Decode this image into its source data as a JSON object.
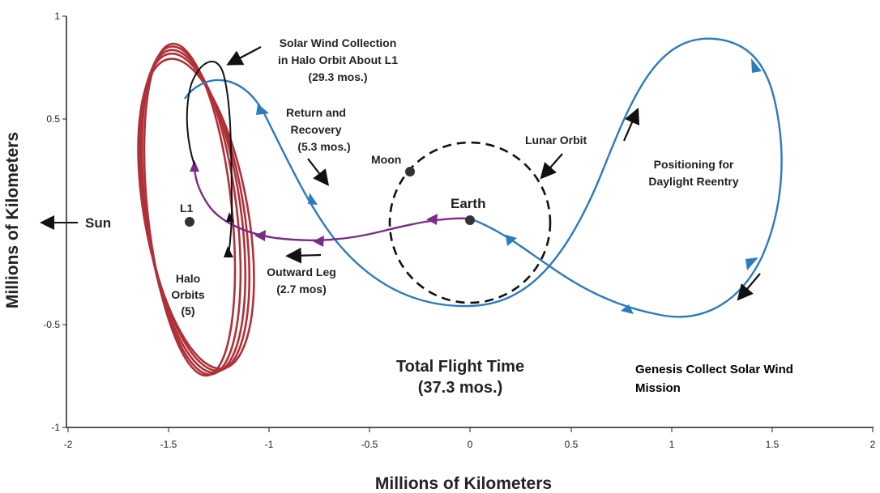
{
  "axes": {
    "x_label": "Millions of Kilometers",
    "y_label": "Millions of Kilometers",
    "x_ticks": [
      "-2",
      "-1.5",
      "-1",
      "-0.5",
      "0",
      "0.5",
      "1",
      "1.5",
      "2"
    ],
    "y_ticks": [
      "1",
      "0.5",
      "-0.5",
      "-1"
    ],
    "xlim": [
      -2,
      2
    ],
    "ylim": [
      -1,
      1
    ]
  },
  "labels": {
    "sun": "Sun",
    "l1": "L1",
    "earth": "Earth",
    "moon": "Moon",
    "lunar_orbit": "Lunar Orbit",
    "halo_orbits": [
      "Halo",
      "Orbits",
      "(5)"
    ],
    "solar_wind": [
      "Solar Wind Collection",
      "in Halo Orbit About L1",
      "(29.3 mos.)"
    ],
    "return": [
      "Return and",
      "Recovery",
      "(5.3 mos.)"
    ],
    "positioning": [
      "Positioning for",
      "Daylight Reentry"
    ],
    "outward": [
      "Outward Leg",
      "(2.7 mos)"
    ],
    "total": [
      "Total Flight Time",
      "(37.3 mos.)"
    ],
    "caption": [
      "Genesis Collect Solar Wind",
      "Mission"
    ]
  },
  "colors": {
    "halo": "#b03038",
    "blue": "#2b7bbf",
    "purple": "#7a2b8a",
    "black": "#111111"
  }
}
